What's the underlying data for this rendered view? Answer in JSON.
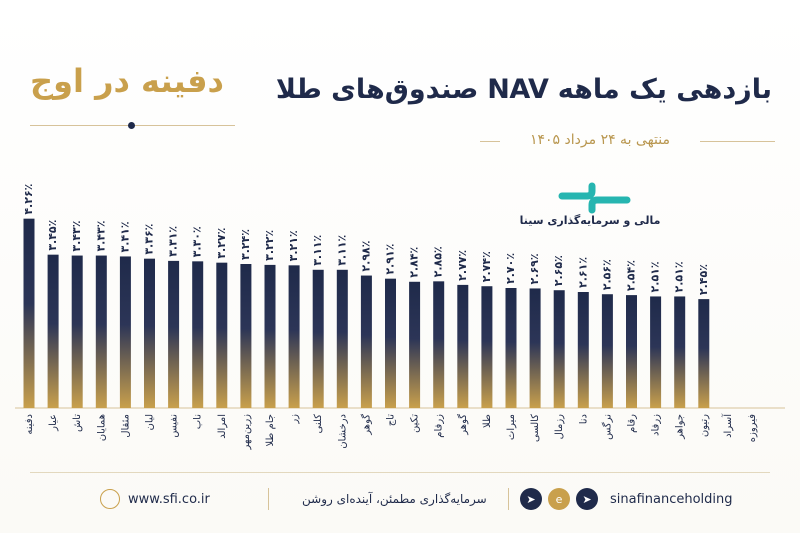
{
  "header": {
    "title": "بازدهی یک ماهه NAV صندوق‌های طلا",
    "subtitle": "منتهی به ۲۴ مرداد ۱۴۰۵",
    "tagline": "دفینه در اوج"
  },
  "brand": {
    "name": "مالی و سرمایه‌گذاری سینا"
  },
  "footer": {
    "website": "www.sfi.co.ir",
    "slogan": "سرمایه‌گذاری مطمئن، آینده‌ای روشن",
    "handle": "sinafinanceholding",
    "icons": [
      "globe-icon",
      "telegram-icon",
      "eitaa-icon",
      "telegram-icon"
    ]
  },
  "colors": {
    "navy": "#1f2a4a",
    "gold": "#c9a04c",
    "accent": "#26b5b0"
  },
  "chart_data": {
    "type": "bar",
    "categories": [
      "دفینه",
      "عیار",
      "تاش",
      "همایان",
      "مثقال",
      "لیان",
      "نفیس",
      "ناب",
      "امرالد",
      "زرین‌مهر",
      "جام طلا",
      "زر",
      "کلنی",
      "درخشان",
      "گوهر",
      "تاج",
      "تکین",
      "زرفام",
      "گوهر",
      "طلا",
      "میراث",
      "کالسی",
      "رزمال",
      "دنا",
      "نرگس",
      "رقام",
      "زرفاد",
      "جواهر",
      "رتیون",
      "آسراد",
      "فیروزه"
    ],
    "values": [
      4.26,
      3.45,
      3.43,
      3.43,
      3.41,
      3.36,
      3.31,
      3.3,
      3.27,
      3.24,
      3.22,
      3.21,
      3.11,
      3.11,
      2.98,
      2.91,
      2.84,
      2.85,
      2.77,
      2.74,
      2.7,
      2.69,
      2.65,
      2.61,
      2.56,
      2.54,
      2.51,
      2.51,
      2.45,
      null,
      null
    ],
    "labels": [
      "۴.۲۶٪",
      "۳.۴۵٪",
      "۳.۴۳٪",
      "۳.۴۳٪",
      "۳.۴۱٪",
      "۳.۳۶٪",
      "۳.۳۱٪",
      "۳.۳۰٪",
      "۳.۲۷٪",
      "۳.۲۴٪",
      "۳.۲۲٪",
      "۳.۲۱٪",
      "۳.۱۱٪",
      "۳.۱۱٪",
      "۲.۹۸٪",
      "۲.۹۱٪",
      "۲.۸۴٪",
      "۲.۸۵٪",
      "۲.۷۷٪",
      "۲.۷۴٪",
      "۲.۷۰٪",
      "۲.۶۹٪",
      "۲.۶۵٪",
      "۲.۶۱٪",
      "۲.۵۶٪",
      "۲.۵۴٪",
      "۲.۵۱٪",
      "۲.۵۱٪",
      "۲.۴۵٪",
      "",
      ""
    ],
    "ylim": [
      0,
      4.5
    ],
    "grid": false,
    "legend": "none"
  }
}
